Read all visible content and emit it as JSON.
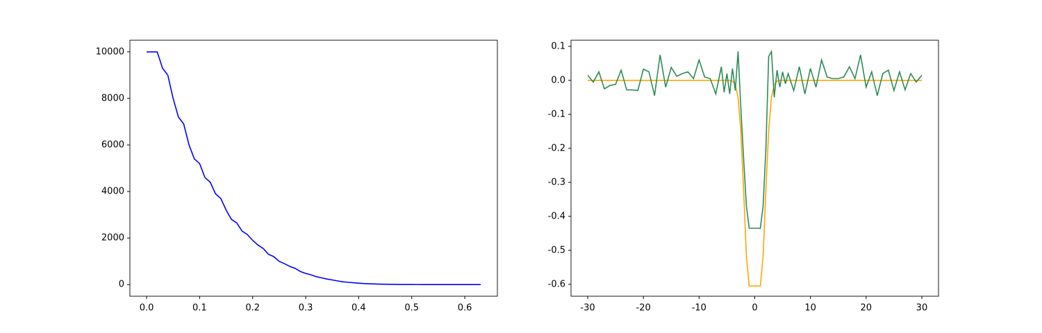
{
  "chart_data": [
    {
      "type": "line",
      "x": [
        0,
        0.01,
        0.02,
        0.03,
        0.04,
        0.05,
        0.06,
        0.07,
        0.08,
        0.09,
        0.1,
        0.11,
        0.12,
        0.13,
        0.14,
        0.15,
        0.16,
        0.17,
        0.18,
        0.19,
        0.2,
        0.21,
        0.22,
        0.23,
        0.24,
        0.25,
        0.26,
        0.27,
        0.28,
        0.29,
        0.3,
        0.31,
        0.32,
        0.33,
        0.34,
        0.35,
        0.36,
        0.37,
        0.38,
        0.39,
        0.4,
        0.41,
        0.42,
        0.43,
        0.44,
        0.45,
        0.46,
        0.47,
        0.48,
        0.49,
        0.5,
        0.51,
        0.52,
        0.53,
        0.54,
        0.55,
        0.56,
        0.57,
        0.58,
        0.59,
        0.6,
        0.61,
        0.62,
        0.63
      ],
      "series": [
        {
          "color": "#0000ff",
          "values": [
            10000,
            10000,
            10000,
            9300,
            9000,
            8000,
            7200,
            6900,
            6000,
            5400,
            5200,
            4600,
            4400,
            3900,
            3700,
            3200,
            2800,
            2650,
            2300,
            2150,
            1900,
            1700,
            1550,
            1300,
            1200,
            1000,
            900,
            780,
            700,
            560,
            480,
            420,
            340,
            290,
            240,
            200,
            160,
            120,
            100,
            80,
            60,
            45,
            35,
            27,
            20,
            15,
            11,
            8,
            6,
            5,
            4,
            3,
            2,
            2,
            1,
            1,
            1,
            1,
            0,
            0,
            0,
            0,
            0,
            0
          ]
        }
      ],
      "xlim": [
        -0.0315,
        0.6615
      ],
      "xticks": [
        {
          "value": 0,
          "label": "0.0"
        },
        0.1,
        0.2,
        0.3,
        0.4,
        0.5,
        0.6
      ],
      "ylim": [
        -500,
        10500
      ],
      "yticks": [
        0,
        2000,
        4000,
        6000,
        8000,
        10000
      ]
    },
    {
      "type": "line",
      "x": [
        -30,
        -29,
        -28,
        -27,
        -26,
        -25,
        -24,
        -23,
        -22,
        -21,
        -20,
        -19,
        -18,
        -17,
        -16,
        -15,
        -14,
        -13,
        -12,
        -11,
        -10,
        -9,
        -8,
        -7,
        -6,
        -5.5,
        -5,
        -4.5,
        -4,
        -3.5,
        -3,
        -2.5,
        -2,
        -1.5,
        -1,
        -0.5,
        0,
        0.5,
        1,
        1.5,
        2,
        2.5,
        3,
        3.5,
        4,
        4.5,
        5,
        5.5,
        6,
        7,
        8,
        9,
        10,
        11,
        12,
        13,
        14,
        15,
        16,
        17,
        18,
        19,
        20,
        21,
        22,
        23,
        24,
        25,
        26,
        27,
        28,
        29,
        30
      ],
      "series": [
        {
          "color": "#ffa500",
          "values": [
            0,
            0,
            0,
            0,
            0,
            0,
            0,
            0,
            0,
            0,
            0,
            0,
            0,
            0,
            0,
            0,
            0,
            0,
            0,
            0,
            0,
            0,
            0,
            0,
            0,
            0,
            0,
            0,
            -0.002,
            -0.012,
            -0.05,
            -0.148,
            -0.324,
            -0.517,
            -0.605,
            -0.605,
            -0.605,
            -0.605,
            -0.605,
            -0.517,
            -0.324,
            -0.148,
            -0.05,
            -0.012,
            -0.002,
            0,
            0,
            0,
            0,
            0,
            0,
            0,
            0,
            0,
            0,
            0,
            0,
            0,
            0,
            0,
            0,
            0,
            0,
            0,
            0,
            0,
            0,
            0,
            0,
            0,
            0,
            0,
            0
          ]
        },
        {
          "color": "#2e8b57",
          "values": [
            0.015,
            -0.005,
            0.025,
            -0.025,
            -0.015,
            -0.012,
            0.03,
            -0.028,
            -0.028,
            -0.03,
            0.033,
            0.025,
            -0.045,
            0.075,
            -0.02,
            0.038,
            0.012,
            0.02,
            0.025,
            0.005,
            0.06,
            0.01,
            0.005,
            -0.04,
            0.04,
            -0.035,
            0.02,
            -0.04,
            0.035,
            -0.03,
            0.085,
            -0.08,
            -0.23,
            -0.37,
            -0.435,
            -0.435,
            -0.435,
            -0.435,
            -0.435,
            -0.37,
            -0.2,
            0.07,
            0.085,
            -0.05,
            0.03,
            -0.02,
            0.025,
            -0.01,
            0.02,
            -0.03,
            0.04,
            -0.04,
            0.035,
            -0.02,
            0.06,
            0.01,
            0.005,
            0.005,
            0.01,
            0.04,
            0.005,
            0.075,
            -0.02,
            0.025,
            -0.045,
            0.02,
            0.03,
            -0.03,
            0.025,
            -0.028,
            0.02,
            -0.005,
            0.015
          ]
        }
      ],
      "xlim": [
        -33,
        33
      ],
      "xticks": [
        -30,
        -20,
        -10,
        0,
        10,
        20,
        30
      ],
      "ylim": [
        -0.635,
        0.118
      ],
      "yticks": [
        0.1,
        {
          "value": 0,
          "label": "0.0"
        },
        -0.1,
        -0.2,
        -0.3,
        -0.4,
        -0.5,
        -0.6
      ]
    }
  ]
}
